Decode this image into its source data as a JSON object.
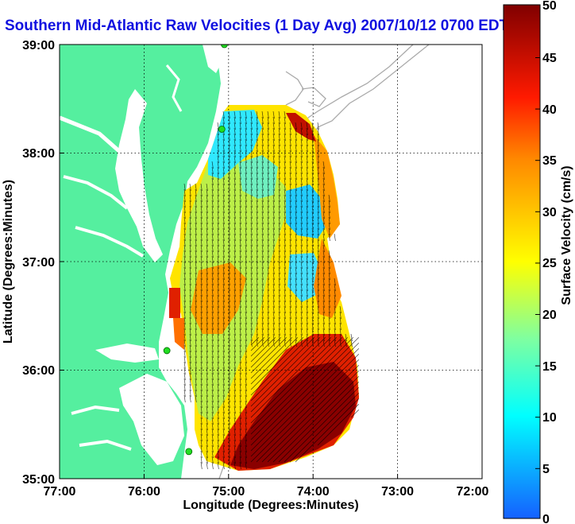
{
  "title": "Southern Mid-Atlantic Raw Velocities (1 Day Avg) 2007/10/12 0700 EDT",
  "axes": {
    "x_label": "Longitude (Degrees:Minutes)",
    "y_label": "Latitude (Degrees:Minutes)",
    "x_ticks": [
      "77:00",
      "76:00",
      "75:00",
      "74:00",
      "73:00",
      "72:00"
    ],
    "y_ticks": [
      "39:00",
      "38:00",
      "37:00",
      "36:00",
      "35:00"
    ]
  },
  "colorbar": {
    "label": "Surface Velocity (cm/s)",
    "ticks": [
      "0",
      "5",
      "10",
      "15",
      "20",
      "25",
      "30",
      "35",
      "40",
      "45",
      "50"
    ],
    "min": 0,
    "max": 50
  },
  "colors": {
    "land": "#55ef9f",
    "title": "#1010e0",
    "station": "#22dd22"
  },
  "stations": [
    {
      "lon": -75.05,
      "lat": 39.0
    },
    {
      "lon": -75.08,
      "lat": 38.22
    },
    {
      "lon": -75.73,
      "lat": 36.18
    },
    {
      "lon": -75.47,
      "lat": 35.25
    }
  ]
}
